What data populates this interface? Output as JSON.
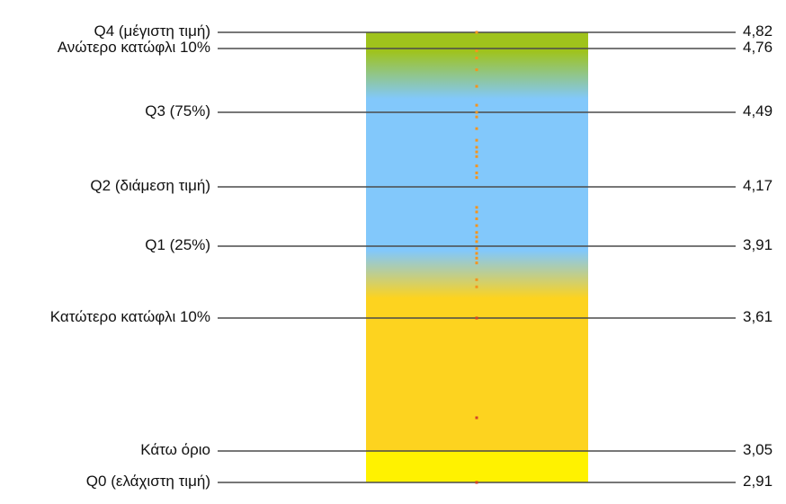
{
  "chart_data": {
    "type": "boxplot-gradient",
    "title": "",
    "range": [
      2.91,
      4.82
    ],
    "levels": [
      {
        "key": "q4",
        "label": "Q4 (μέγιστη τιμή)",
        "value": 4.82,
        "value_label": "4,82"
      },
      {
        "key": "upper10",
        "label": "Ανώτερο κατώφλι 10%",
        "value": 4.76,
        "value_label": "4,76"
      },
      {
        "key": "q3",
        "label": "Q3 (75%)",
        "value": 4.49,
        "value_label": "4,49"
      },
      {
        "key": "q2",
        "label": "Q2 (διάμεση τιμή)",
        "value": 4.17,
        "value_label": "4,17"
      },
      {
        "key": "q1",
        "label": "Q1 (25%)",
        "value": 3.91,
        "value_label": "3,91"
      },
      {
        "key": "lower10",
        "label": "Κατώτερο κατώφλι 10%",
        "value": 3.61,
        "value_label": "3,61"
      },
      {
        "key": "lower_limit",
        "label": "Κάτω όριο",
        "value": 3.05,
        "value_label": "3,05"
      },
      {
        "key": "q0",
        "label": "Q0 (ελάχιστη τιμή)",
        "value": 2.91,
        "value_label": "2,91"
      }
    ],
    "points": [
      4.82,
      4.75,
      4.72,
      4.67,
      4.6,
      4.52,
      4.49,
      4.47,
      4.42,
      4.37,
      4.34,
      4.32,
      4.3,
      4.26,
      4.23,
      4.21,
      4.08,
      4.06,
      4.03,
      4.0,
      3.97,
      3.95,
      3.93,
      3.9,
      3.88,
      3.86,
      3.84,
      3.77,
      3.74,
      3.61,
      3.19,
      2.91
    ],
    "colors": {
      "top": "#9fc31c",
      "middle": "#82c8fb",
      "bottom": "#fdd31f",
      "below_limit": "#fff200",
      "points": "#f5941d",
      "points_low": "#d2432a",
      "lines": "#4a4a4a"
    }
  }
}
